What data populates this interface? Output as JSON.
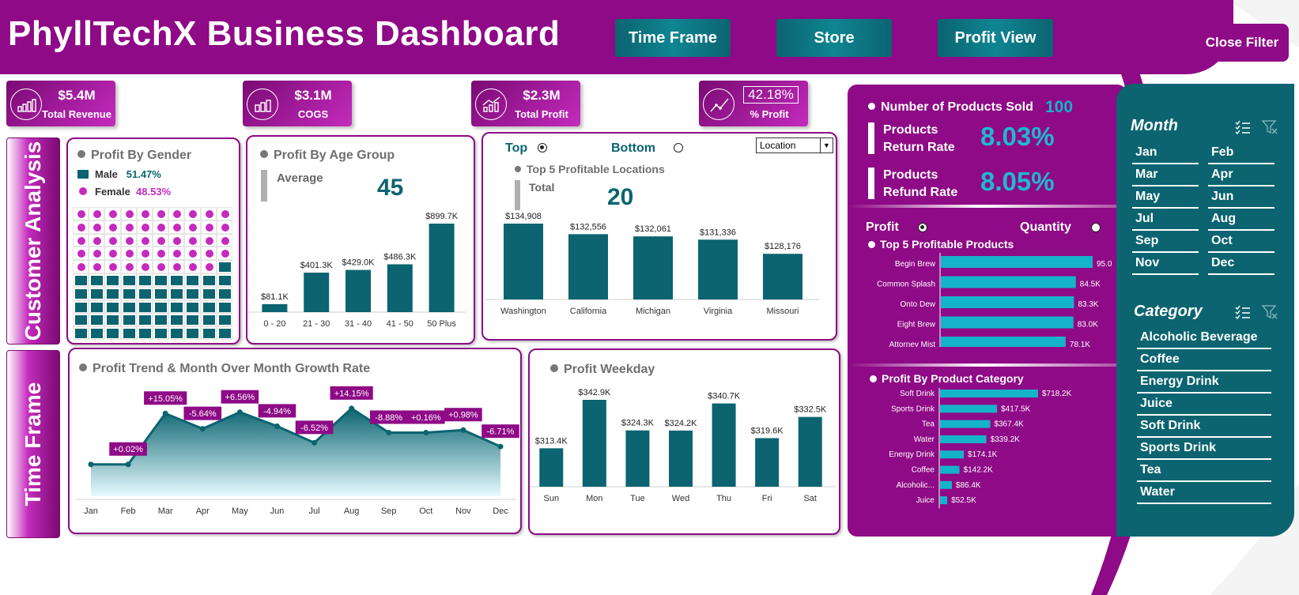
{
  "header": {
    "title": "PhyllTechX Business Dashboard",
    "nav": [
      "Time Frame",
      "Store",
      "Profit View"
    ],
    "close_filter": "Close Filter"
  },
  "kpis": [
    {
      "value": "$5.4M",
      "label": "Total Revenue"
    },
    {
      "value": "$3.1M",
      "label": "COGS"
    },
    {
      "value": "$2.3M",
      "label": "Total Profit"
    },
    {
      "value": "42.18%",
      "label": "% Profit"
    }
  ],
  "side_tabs": [
    "Customer Analysis",
    "Time Frame"
  ],
  "gender": {
    "title": "Profit By Gender",
    "male_label": "Male",
    "male_pct": "51.47%",
    "female_label": "Female",
    "female_pct": "48.53%",
    "colors": {
      "male": "#0b6470",
      "female": "#c42bbd"
    },
    "female_cells": 49
  },
  "age": {
    "title": "Profit By Age Group",
    "avg_label": "Average",
    "avg_value": "45",
    "chart_data": {
      "type": "bar",
      "categories": [
        "0 - 20",
        "21 - 30",
        "31 - 40",
        "41 - 50",
        "50 Plus"
      ],
      "values": [
        81.1,
        401.3,
        429.0,
        486.3,
        899.7
      ],
      "labels": [
        "$81.1K",
        "$401.3K",
        "$429.0K",
        "$486.3K",
        "$899.7K"
      ]
    }
  },
  "locations": {
    "top_label": "Top",
    "bottom_label": "Bottom",
    "dropdown": "Location",
    "title": "Top 5 Profitable Locations",
    "total_label": "Total",
    "total_value": "20",
    "chart_data": {
      "type": "bar",
      "categories": [
        "Washington",
        "California",
        "Michigan",
        "Virginia",
        "Missouri"
      ],
      "values": [
        134908,
        132556,
        132061,
        131336,
        128176
      ],
      "labels": [
        "$134,908",
        "$132,556",
        "$132,061",
        "$131,336",
        "$128,176"
      ]
    }
  },
  "trend": {
    "title": "Profit Trend & Month Over Month Growth Rate",
    "chart_data": {
      "type": "area",
      "categories": [
        "Jan",
        "Feb",
        "Mar",
        "Apr",
        "May",
        "Jun",
        "Jul",
        "Aug",
        "Sep",
        "Oct",
        "Nov",
        "Dec"
      ],
      "values": [
        175,
        175,
        215,
        203,
        216,
        205,
        192,
        219,
        200,
        200,
        202,
        189
      ],
      "growth": [
        "",
        "+0.02%",
        "+15.05%",
        "-5.64%",
        "+6.56%",
        "-4.94%",
        "-6.52%",
        "+14.15%",
        "-8.88%",
        "+0.16%",
        "+0.98%",
        "-6.71%"
      ]
    }
  },
  "weekday": {
    "title": "Profit Weekday",
    "chart_data": {
      "type": "bar",
      "categories": [
        "Sun",
        "Mon",
        "Tue",
        "Wed",
        "Thu",
        "Fri",
        "Sat"
      ],
      "values": [
        313.4,
        342.9,
        324.3,
        324.2,
        340.7,
        319.6,
        332.5
      ],
      "labels": [
        "$313.4K",
        "$342.9K",
        "$324.3K",
        "$324.2K",
        "$340.7K",
        "$319.6K",
        "$332.5K"
      ]
    }
  },
  "products_summary": {
    "sold_label": "Number of Products Sold",
    "sold_value": "100",
    "return_label_1": "Products",
    "return_label_2": "Return Rate",
    "return_value": "8.03%",
    "refund_label_1": "Products",
    "refund_label_2": "Refund Rate",
    "refund_value": "8.05%"
  },
  "top_products": {
    "profit_label": "Profit",
    "quantity_label": "Quantity",
    "title": "Top 5 Profitable Products",
    "chart_data": {
      "type": "bar",
      "categories": [
        "Begin Brew",
        "Common Splash",
        "Onto Dew",
        "Eight Brew",
        "Attorney Mist"
      ],
      "values": [
        95.0,
        84.5,
        83.3,
        83.0,
        78.1
      ],
      "labels": [
        "95.0",
        "84.5K",
        "83.3K",
        "83.0K",
        "78.1K"
      ]
    }
  },
  "category_profit": {
    "title": "Profit By Product Category",
    "chart_data": {
      "type": "bar",
      "categories": [
        "Soft Drink",
        "Sports Drink",
        "Tea",
        "Water",
        "Energy Drink",
        "Coffee",
        "Alcoholic...",
        "Juice"
      ],
      "values": [
        718.2,
        417.5,
        367.4,
        339.2,
        174.1,
        142.2,
        86.4,
        52.5
      ],
      "labels": [
        "$718.2K",
        "$417.5K",
        "$367.4K",
        "$339.2K",
        "$174.1K",
        "$142.2K",
        "$86.4K",
        "$52.5K"
      ]
    }
  },
  "filters": {
    "month_title": "Month",
    "months": [
      "Jan",
      "Feb",
      "Mar",
      "Apr",
      "May",
      "Jun",
      "Jul",
      "Aug",
      "Sep",
      "Oct",
      "Nov",
      "Dec"
    ],
    "category_title": "Category",
    "categories": [
      "Alcoholic Beverage",
      "Coffee",
      "Energy Drink",
      "Juice",
      "Soft Drink",
      "Sports Drink",
      "Tea",
      "Water"
    ]
  },
  "colors": {
    "purple": "#8e0a86",
    "teal": "#0b6470",
    "cyan": "#15b3c9"
  }
}
